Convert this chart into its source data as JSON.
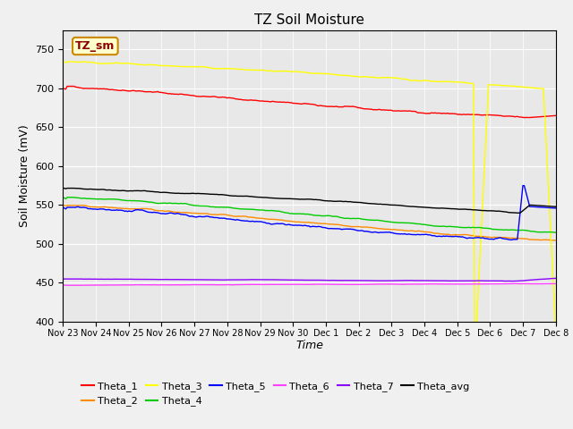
{
  "title": "TZ Soil Moisture",
  "xlabel": "Time",
  "ylabel": "Soil Moisture (mV)",
  "ylim": [
    400,
    775
  ],
  "yticks": [
    400,
    450,
    500,
    550,
    600,
    650,
    700,
    750
  ],
  "legend_label": "TZ_sm",
  "plot_bg_color": "#e8e8e8",
  "fig_bg_color": "#f0f0f0",
  "series": {
    "Theta_1": {
      "color": "#ff0000"
    },
    "Theta_2": {
      "color": "#ff8c00"
    },
    "Theta_3": {
      "color": "#ffff00"
    },
    "Theta_4": {
      "color": "#00cc00"
    },
    "Theta_5": {
      "color": "#0000ff"
    },
    "Theta_6": {
      "color": "#ff40ff"
    },
    "Theta_7": {
      "color": "#8b00ff"
    },
    "Theta_avg": {
      "color": "#000000"
    }
  },
  "tick_labels": [
    "Nov 23",
    "Nov 24",
    "Nov 25",
    "Nov 26",
    "Nov 27",
    "Nov 28",
    "Nov 29",
    "Nov 30",
    "Dec 1",
    "Dec 2",
    "Dec 3",
    "Dec 4",
    "Dec 5",
    "Dec 6",
    "Dec 7",
    "Dec 8"
  ],
  "n_points": 360
}
